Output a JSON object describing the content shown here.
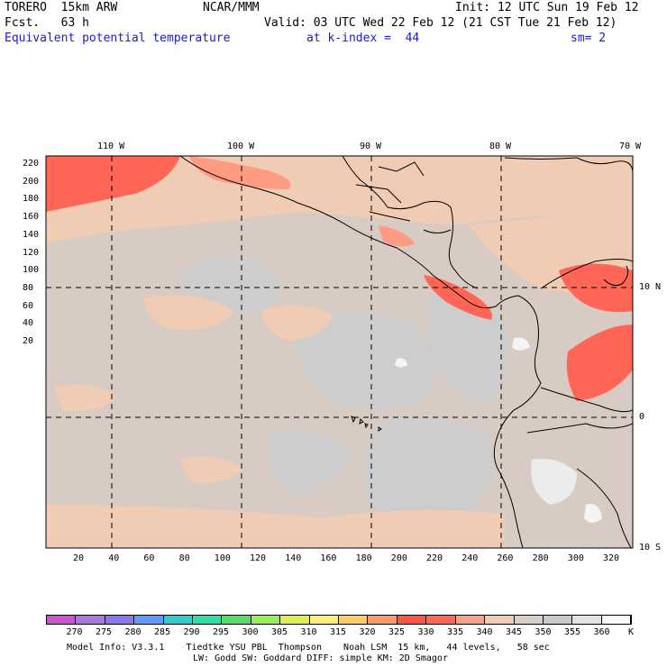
{
  "header": {
    "model": "TORERO  15km ARW",
    "org": "NCAR/MMM",
    "init": "Init: 12 UTC Sun 19 Feb 12",
    "fcst": "Fcst.   63 h",
    "valid": "Valid: 03 UTC Wed 22 Feb 12 (21 CST Tue 21 Feb 12)",
    "field": "Equivalent potential temperature",
    "level": "at k-index =  44",
    "smooth": "sm= 2"
  },
  "axes": {
    "lon_labels": [
      "110 W",
      "100 W",
      "90 W",
      "80 W",
      "70 W"
    ],
    "lat_labels": [
      "10 N",
      "0",
      "10 S"
    ],
    "y_ticks": [
      "220",
      "200",
      "180",
      "160",
      "140",
      "120",
      "100",
      "80",
      "60",
      "40",
      "20"
    ],
    "x_ticks": [
      "20",
      "40",
      "60",
      "80",
      "100",
      "120",
      "140",
      "160",
      "180",
      "200",
      "220",
      "240",
      "260",
      "280",
      "300",
      "320"
    ]
  },
  "colorbar": {
    "labels": [
      "270",
      "275",
      "280",
      "285",
      "290",
      "295",
      "300",
      "305",
      "310",
      "315",
      "320",
      "325",
      "330",
      "335",
      "340",
      "345",
      "350",
      "355",
      "360"
    ],
    "unit": "K",
    "colors": [
      "#cc55cc",
      "#aa77dd",
      "#8877ee",
      "#6699ff",
      "#33cccc",
      "#33ddaa",
      "#55dd66",
      "#99ee55",
      "#ddee55",
      "#ffee77",
      "#ffcc66",
      "#ff9966",
      "#ff5544",
      "#ff6655",
      "#f7a38c",
      "#f0ccb4",
      "#d9cec8",
      "#cacaca",
      "#e4e4e4",
      "#f8f8f8"
    ]
  },
  "footer": {
    "line1": "Model Info: V3.3.1    Tiedtke YSU PBL  Thompson    Noah LSM  15 km,   44 levels,   58 sec",
    "line2": "LW: Godd SW: Goddard DIFF: simple KM: 2D Smagor"
  }
}
